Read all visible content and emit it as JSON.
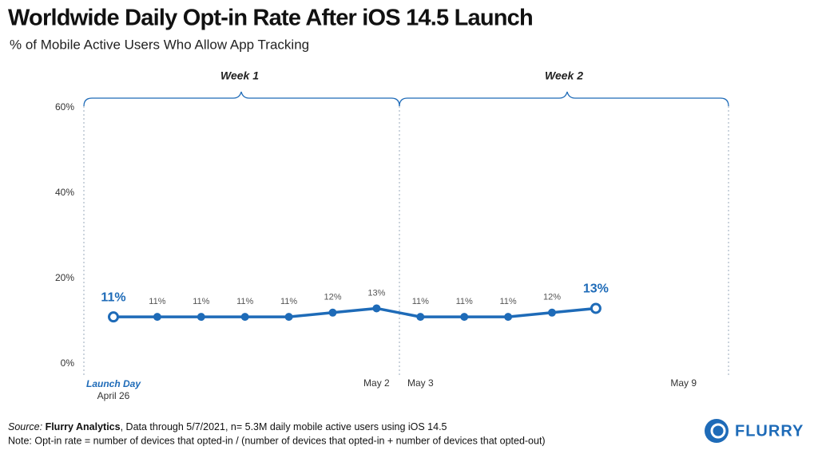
{
  "chart_data": {
    "type": "line",
    "title": "Worldwide Daily Opt-in Rate After iOS 14.5 Launch",
    "subtitle": "% of Mobile Active Users Who Allow App Tracking",
    "categories": [
      "April 26",
      null,
      null,
      null,
      null,
      null,
      "May 2",
      "May 3",
      null,
      null,
      null,
      null,
      null,
      "May 9"
    ],
    "values": [
      11,
      11,
      11,
      11,
      11,
      12,
      13,
      11,
      11,
      11,
      12,
      13,
      null,
      null
    ],
    "value_labels": [
      "11%",
      "11%",
      "11%",
      "11%",
      "11%",
      "12%",
      "13%",
      "11%",
      "11%",
      "11%",
      "12%",
      "13%",
      null,
      null
    ],
    "color": "#1e6bb8",
    "ylim": [
      0,
      60
    ],
    "yticks": [
      {
        "value": 0,
        "label": "0%"
      },
      {
        "value": 20,
        "label": "20%"
      },
      {
        "value": 40,
        "label": "40%"
      },
      {
        "value": 60,
        "label": "60%"
      }
    ],
    "grid": false,
    "annotations": {
      "weeks": [
        "Week 1",
        "Week 2"
      ],
      "launch": "Launch Day"
    },
    "source": {
      "label": "Source:",
      "name": "Flurry Analytics",
      "text": ", Data through 5/7/2021, n= 5.3M daily mobile active users using iOS 14.5"
    },
    "note": "Note: Opt-in rate = number of devices that opted-in / (number of devices that opted-in + number of devices that opted-out)",
    "logo": "FLURRY"
  }
}
